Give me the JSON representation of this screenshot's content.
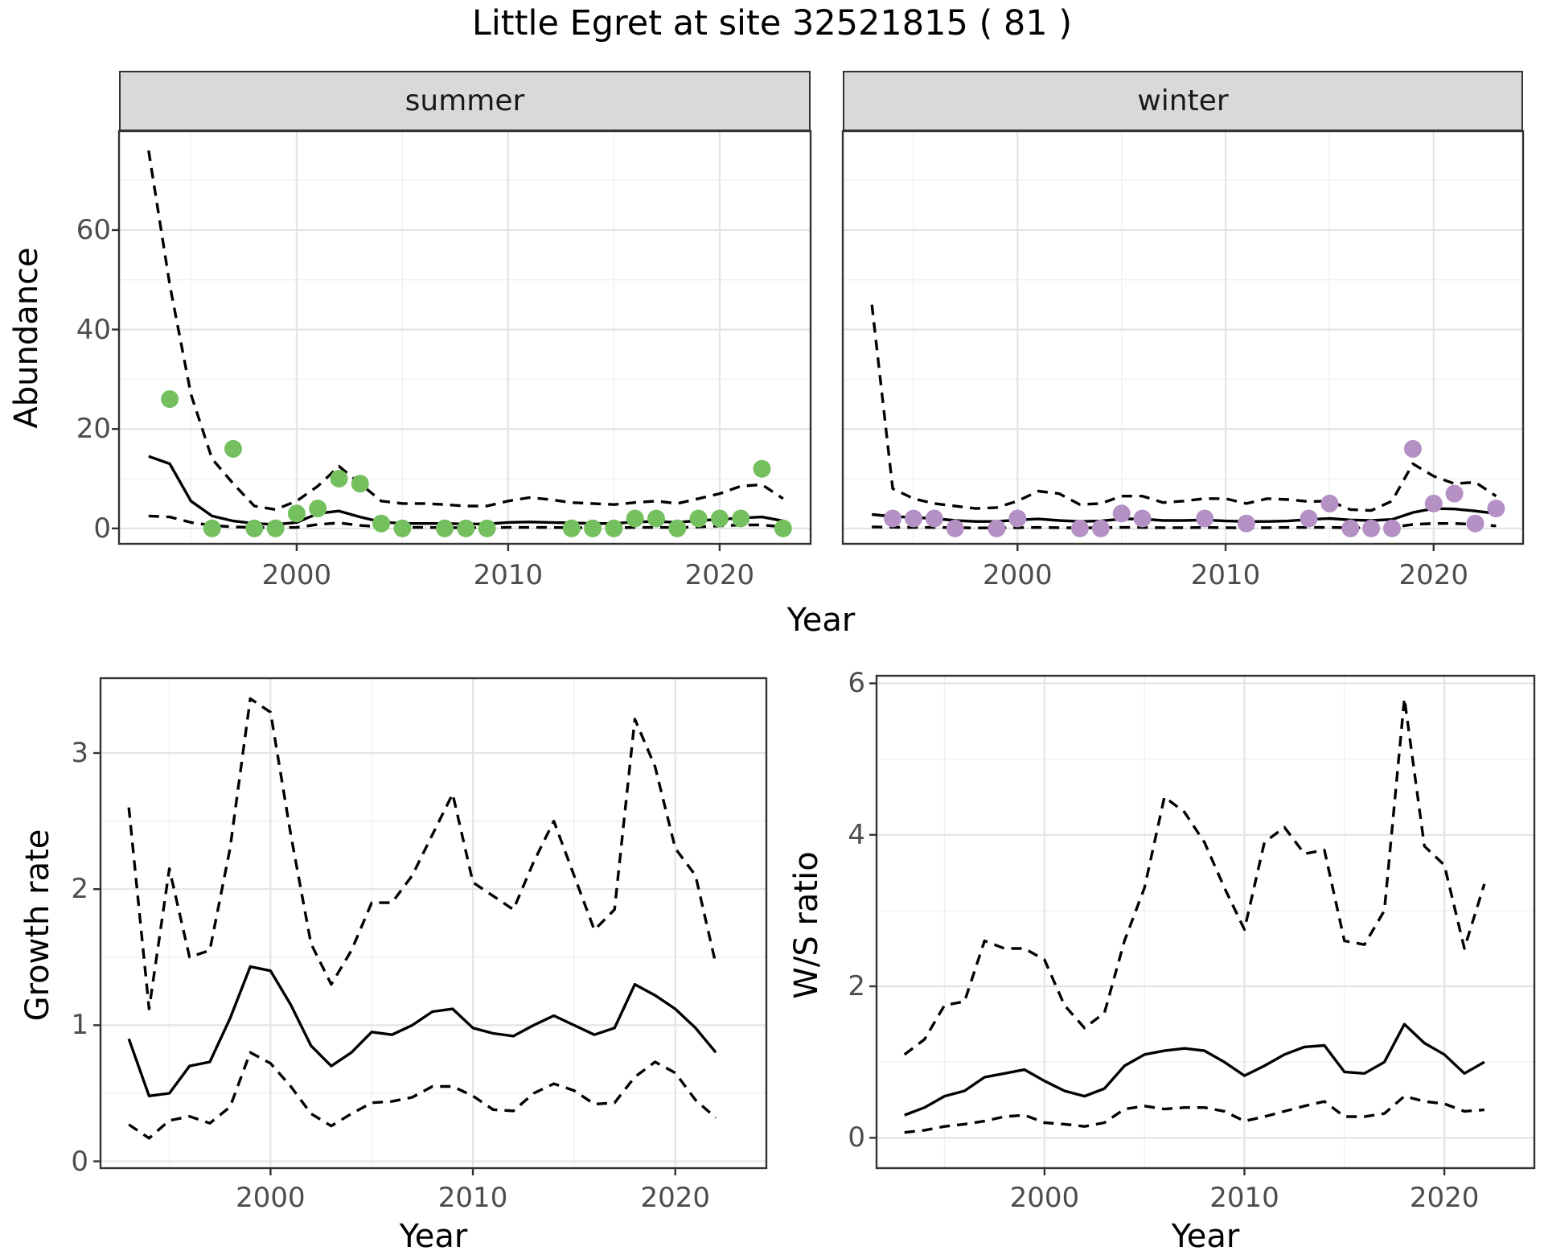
{
  "title": "Little Egret at site 32521815 ( 81 )",
  "facet_labels": [
    "summer",
    "winter"
  ],
  "colors": {
    "summer_point": "#74c05e",
    "winter_point": "#b490c5",
    "line": "#000000",
    "strip_bg": "#d9d9d9",
    "grid_major": "#e4e4e4",
    "grid_minor": "#f0f0f0",
    "panel_border": "#333333",
    "tick_text": "#4d4d4d"
  },
  "chart_data": [
    {
      "id": "abundance_summer",
      "type": "line",
      "facet": "summer",
      "title": "Little Egret at site 32521815 ( 81 )",
      "xlabel": "Year",
      "ylabel": "Abundance",
      "xlim": [
        1991.6,
        2024.3
      ],
      "ylim": [
        -3.1,
        79.9
      ],
      "xticks": [
        2000,
        2010,
        2020
      ],
      "xticks_minor": [
        1995,
        2005,
        2015
      ],
      "yticks": [
        0,
        20,
        40,
        60
      ],
      "yticks_minor": [
        10,
        30,
        50,
        70
      ],
      "grid": true,
      "legend": "none",
      "x": [
        1993,
        1994,
        1995,
        1996,
        1997,
        1998,
        1999,
        2000,
        2001,
        2002,
        2003,
        2004,
        2005,
        2006,
        2007,
        2008,
        2009,
        2010,
        2011,
        2012,
        2013,
        2014,
        2015,
        2016,
        2017,
        2018,
        2019,
        2020,
        2021,
        2022,
        2023
      ],
      "series": [
        {
          "name": "mean",
          "style": "solid",
          "values": [
            14.5,
            13,
            5.5,
            2.5,
            1.5,
            1,
            0.8,
            1.2,
            3,
            3.5,
            2.3,
            1.3,
            1,
            1,
            1,
            0.9,
            0.9,
            1.2,
            1.3,
            1.2,
            1.1,
            1,
            1,
            1.3,
            1.4,
            1.2,
            1.6,
            1.8,
            2.1,
            2.3,
            1.5
          ]
        },
        {
          "name": "upper_ci",
          "style": "dashed",
          "values": [
            76,
            49,
            27,
            14,
            9,
            4.5,
            3.8,
            5.5,
            8.5,
            12.5,
            9,
            5.5,
            5,
            5,
            4.8,
            4.5,
            4.5,
            5.5,
            6.2,
            5.8,
            5.2,
            5,
            4.8,
            5.2,
            5.5,
            5,
            6,
            7,
            8.5,
            8.8,
            6
          ]
        },
        {
          "name": "lower_ci",
          "style": "dashed",
          "values": [
            2.5,
            2.3,
            1.2,
            0.6,
            0.3,
            0.2,
            0.15,
            0.2,
            0.8,
            1.1,
            0.6,
            0.3,
            0.2,
            0.2,
            0.15,
            0.15,
            0.15,
            0.2,
            0.2,
            0.2,
            0.15,
            0.15,
            0.15,
            0.2,
            0.2,
            0.2,
            0.3,
            0.5,
            0.7,
            0.7,
            0.3
          ]
        }
      ],
      "points": {
        "name": "observed_counts",
        "color_key": "summer_point",
        "x": [
          1994,
          1996,
          1997,
          1998,
          1999,
          2000,
          2001,
          2002,
          2003,
          2004,
          2005,
          2007,
          2008,
          2009,
          2013,
          2014,
          2015,
          2016,
          2017,
          2018,
          2019,
          2020,
          2021,
          2022,
          2023
        ],
        "y": [
          26,
          0,
          16,
          0,
          0,
          3,
          4,
          10,
          9,
          1,
          0,
          0,
          0,
          0,
          0,
          0,
          0,
          2,
          2,
          0,
          2,
          2,
          2,
          12,
          0
        ]
      }
    },
    {
      "id": "abundance_winter",
      "type": "line",
      "facet": "winter",
      "xlabel": "Year",
      "ylabel": "Abundance",
      "xlim": [
        1991.6,
        2024.3
      ],
      "ylim": [
        -3.1,
        79.9
      ],
      "xticks": [
        2000,
        2010,
        2020
      ],
      "xticks_minor": [
        1995,
        2005,
        2015
      ],
      "yticks": [
        0,
        20,
        40,
        60
      ],
      "yticks_minor": [
        10,
        30,
        50,
        70
      ],
      "grid": true,
      "legend": "none",
      "x": [
        1993,
        1994,
        1995,
        1996,
        1997,
        1998,
        1999,
        2000,
        2001,
        2002,
        2003,
        2004,
        2005,
        2006,
        2007,
        2008,
        2009,
        2010,
        2011,
        2012,
        2013,
        2014,
        2015,
        2016,
        2017,
        2018,
        2019,
        2020,
        2021,
        2022,
        2023
      ],
      "series": [
        {
          "name": "mean",
          "style": "solid",
          "values": [
            2.8,
            2.4,
            2.2,
            2,
            1.6,
            1.4,
            1.4,
            1.7,
            1.9,
            1.6,
            1.4,
            1.5,
            1.9,
            1.9,
            1.6,
            1.6,
            1.7,
            1.5,
            1.4,
            1.4,
            1.5,
            1.8,
            2,
            1.7,
            1.6,
            1.8,
            3.2,
            4,
            3.9,
            3.5,
            3
          ]
        },
        {
          "name": "upper_ci",
          "style": "dashed",
          "values": [
            45,
            8,
            6,
            5,
            4.5,
            4,
            4.2,
            5.5,
            7.5,
            7,
            4.8,
            5,
            6.5,
            6.5,
            5.2,
            5.5,
            6,
            6,
            5,
            6,
            5.8,
            5.4,
            5.5,
            3.8,
            3.6,
            5.5,
            13,
            10.5,
            9,
            9.3,
            6.5
          ]
        },
        {
          "name": "lower_ci",
          "style": "dashed",
          "values": [
            0.3,
            0.25,
            0.2,
            0.2,
            0.15,
            0.1,
            0.1,
            0.15,
            0.2,
            0.15,
            0.1,
            0.15,
            0.2,
            0.2,
            0.15,
            0.15,
            0.2,
            0.15,
            0.1,
            0.15,
            0.2,
            0.2,
            0.2,
            0.15,
            0.15,
            0.2,
            0.8,
            1,
            1,
            0.8,
            0.5
          ]
        }
      ],
      "points": {
        "name": "observed_counts",
        "color_key": "winter_point",
        "x": [
          1994,
          1995,
          1996,
          1997,
          1999,
          2000,
          2003,
          2004,
          2005,
          2006,
          2009,
          2011,
          2014,
          2015,
          2016,
          2017,
          2018,
          2019,
          2020,
          2021,
          2022,
          2023
        ],
        "y": [
          2,
          2,
          2,
          0,
          0,
          2,
          0,
          0,
          3,
          2,
          2,
          1,
          2,
          5,
          0,
          0,
          0,
          16,
          5,
          7,
          1,
          4
        ]
      }
    },
    {
      "id": "growth_rate",
      "type": "line",
      "xlabel": "Year",
      "ylabel": "Growth rate",
      "xlim": [
        1991.6,
        2024.5
      ],
      "ylim": [
        -0.05,
        3.55
      ],
      "xticks": [
        2000,
        2010,
        2020
      ],
      "xticks_minor": [
        1995,
        2005,
        2015
      ],
      "yticks": [
        0,
        1,
        2,
        3
      ],
      "yticks_minor": [
        0.5,
        1.5,
        2.5
      ],
      "grid": true,
      "legend": "none",
      "x": [
        1993,
        1994,
        1995,
        1996,
        1997,
        1998,
        1999,
        2000,
        2001,
        2002,
        2003,
        2004,
        2005,
        2006,
        2007,
        2008,
        2009,
        2010,
        2011,
        2012,
        2013,
        2014,
        2015,
        2016,
        2017,
        2018,
        2019,
        2020,
        2021,
        2022
      ],
      "series": [
        {
          "name": "mean",
          "style": "solid",
          "values": [
            0.9,
            0.48,
            0.5,
            0.7,
            0.73,
            1.05,
            1.43,
            1.4,
            1.15,
            0.85,
            0.7,
            0.8,
            0.95,
            0.93,
            1,
            1.1,
            1.12,
            0.98,
            0.94,
            0.92,
            1,
            1.07,
            1,
            0.93,
            0.98,
            1.3,
            1.22,
            1.12,
            0.98,
            0.8
          ]
        },
        {
          "name": "upper_ci",
          "style": "dashed",
          "values": [
            2.6,
            1.12,
            2.15,
            1.5,
            1.55,
            2.3,
            3.4,
            3.3,
            2.4,
            1.6,
            1.3,
            1.55,
            1.9,
            1.9,
            2.1,
            2.4,
            2.7,
            2.05,
            1.95,
            1.85,
            2.2,
            2.5,
            2.1,
            1.7,
            1.85,
            3.25,
            2.9,
            2.3,
            2.1,
            1.45
          ]
        },
        {
          "name": "lower_ci",
          "style": "dashed",
          "values": [
            0.27,
            0.17,
            0.3,
            0.33,
            0.28,
            0.4,
            0.8,
            0.72,
            0.55,
            0.35,
            0.26,
            0.35,
            0.43,
            0.44,
            0.47,
            0.55,
            0.55,
            0.48,
            0.38,
            0.37,
            0.5,
            0.57,
            0.52,
            0.42,
            0.43,
            0.62,
            0.73,
            0.65,
            0.45,
            0.32
          ]
        }
      ]
    },
    {
      "id": "ws_ratio",
      "type": "line",
      "xlabel": "Year",
      "ylabel": "W/S ratio",
      "xlim": [
        1991.6,
        2024.5
      ],
      "ylim": [
        -0.4,
        6.1
      ],
      "xticks": [
        2000,
        2010,
        2020
      ],
      "xticks_minor": [
        1995,
        2005,
        2015
      ],
      "yticks": [
        0,
        2,
        4,
        6
      ],
      "yticks_minor": [
        1,
        3,
        5
      ],
      "grid": true,
      "legend": "none",
      "x": [
        1993,
        1994,
        1995,
        1996,
        1997,
        1998,
        1999,
        2000,
        2001,
        2002,
        2003,
        2004,
        2005,
        2006,
        2007,
        2008,
        2009,
        2010,
        2011,
        2012,
        2013,
        2014,
        2015,
        2016,
        2017,
        2018,
        2019,
        2020,
        2021,
        2022
      ],
      "series": [
        {
          "name": "mean",
          "style": "solid",
          "values": [
            0.3,
            0.4,
            0.55,
            0.62,
            0.8,
            0.85,
            0.9,
            0.75,
            0.62,
            0.55,
            0.65,
            0.95,
            1.1,
            1.15,
            1.18,
            1.15,
            1,
            0.82,
            0.95,
            1.1,
            1.2,
            1.22,
            0.87,
            0.85,
            1,
            1.5,
            1.25,
            1.1,
            0.85,
            1
          ]
        },
        {
          "name": "upper_ci",
          "style": "dashed",
          "values": [
            1.1,
            1.3,
            1.75,
            1.8,
            2.6,
            2.5,
            2.5,
            2.35,
            1.75,
            1.45,
            1.65,
            2.6,
            3.3,
            4.5,
            4.3,
            3.9,
            3.3,
            2.75,
            3.9,
            4.1,
            3.75,
            3.8,
            2.6,
            2.55,
            3,
            5.8,
            3.85,
            3.6,
            2.5,
            3.35
          ]
        },
        {
          "name": "lower_ci",
          "style": "dashed",
          "values": [
            0.07,
            0.1,
            0.15,
            0.18,
            0.22,
            0.28,
            0.3,
            0.2,
            0.18,
            0.15,
            0.2,
            0.38,
            0.42,
            0.38,
            0.4,
            0.4,
            0.35,
            0.22,
            0.28,
            0.35,
            0.42,
            0.48,
            0.28,
            0.28,
            0.32,
            0.55,
            0.48,
            0.45,
            0.35,
            0.37
          ]
        }
      ]
    }
  ]
}
